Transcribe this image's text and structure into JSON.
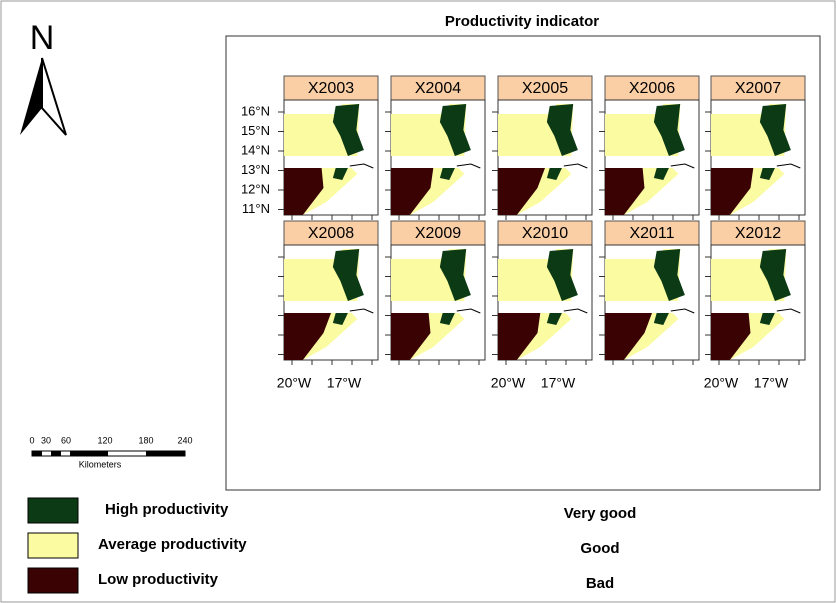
{
  "title": "Productivity indicator",
  "north": "N",
  "panels": [
    "X2003",
    "X2004",
    "X2005",
    "X2006",
    "X2007",
    "X2008",
    "X2009",
    "X2010",
    "X2011",
    "X2012"
  ],
  "lat_labels": [
    "16°N",
    "15°N",
    "14°N",
    "13°N",
    "12°N",
    "11°N"
  ],
  "lon_labels": [
    "20°W",
    "17°W"
  ],
  "scale_bar": {
    "ticks": [
      "0",
      "30",
      "60",
      "120",
      "180",
      "240"
    ],
    "unit": "Kilometers"
  },
  "legend": [
    {
      "label": "High productivity",
      "rating": "Very good",
      "color": "#0c3a14"
    },
    {
      "label": "Average productivity",
      "rating": "Good",
      "color": "#fbfba2"
    },
    {
      "label": "Low productivity",
      "rating": "Bad",
      "color": "#3a0202"
    }
  ]
}
